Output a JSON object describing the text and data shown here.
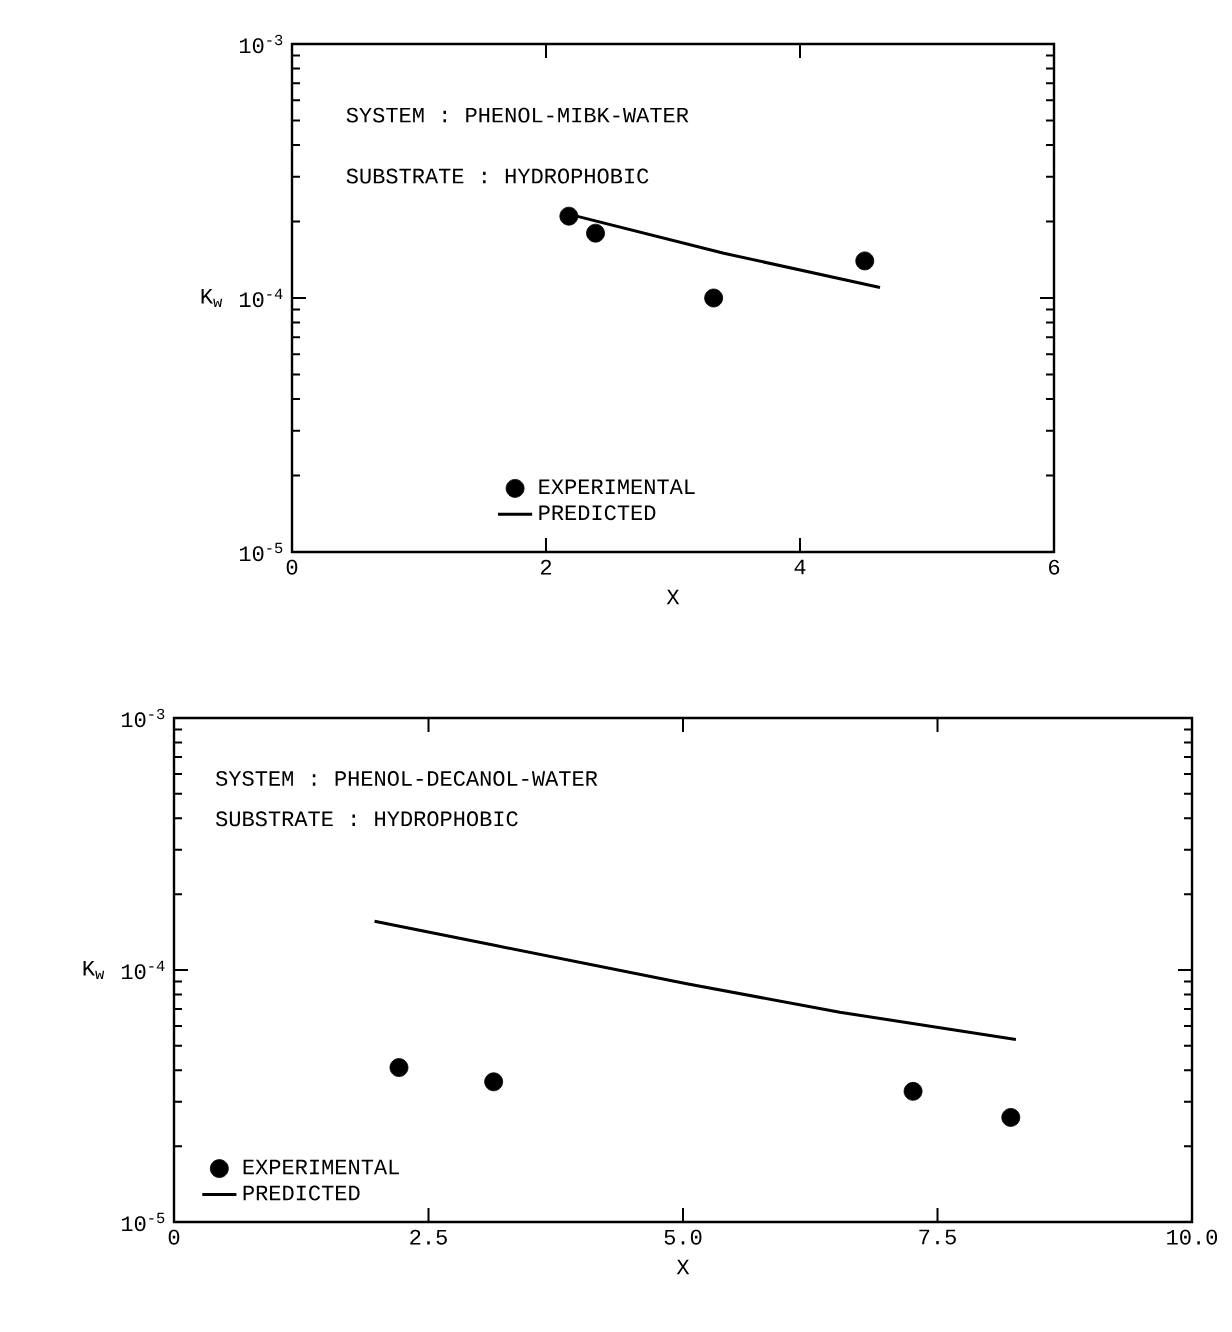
{
  "chart_data": [
    {
      "type": "scatter",
      "xlabel": "X",
      "ylabel": "K$_{w}$",
      "log": "y",
      "legend": "bottom",
      "annotations": [
        "SYSTEM : PHENOL-MIBK-WATER",
        "SUBSTRATE : HYDROPHOBIC"
      ],
      "xlim": [
        0,
        6
      ],
      "xticks": [
        0,
        2,
        4,
        6
      ],
      "ylim": [
        1e-05,
        0.001
      ],
      "yticks": [
        {
          "value": 1e-05,
          "label": "10$^{-5}$"
        },
        {
          "value": 0.0001,
          "label": "10$^{-4}$"
        },
        {
          "value": 0.001,
          "label": "10$^{-3}$"
        }
      ],
      "series": [
        {
          "name": "EXPERIMENTAL",
          "marker": "circle",
          "color": "#000000",
          "x": [
            2.18,
            2.39,
            3.32,
            4.51
          ],
          "values": [
            0.00021,
            0.00018,
            0.0001,
            0.00014
          ]
        },
        {
          "name": "PREDICTED",
          "type": "line",
          "line_style": "solid",
          "color": "#000000",
          "x": [
            2.24,
            3.4,
            4.63
          ],
          "values": [
            0.00021,
            0.00015,
            0.00011
          ]
        }
      ]
    },
    {
      "type": "scatter",
      "xlabel": "X",
      "ylabel": "K$_{w}$",
      "log": "y",
      "legend": "bottom left",
      "annotations": [
        "SYSTEM : PHENOL-DECANOL-WATER",
        "SUBSTRATE : HYDROPHOBIC"
      ],
      "xlim": [
        0,
        10
      ],
      "xticks": [
        0,
        2.5,
        {
          "value": 5,
          "label": "5.0"
        },
        7.5,
        {
          "value": 10,
          "label": "10.0"
        }
      ],
      "ylim": [
        1e-05,
        0.001
      ],
      "yticks": [
        {
          "value": 1e-05,
          "label": "10$^{-5}$"
        },
        {
          "value": 0.0001,
          "label": "10$^{-4}$"
        },
        {
          "value": 0.001,
          "label": "10$^{-3}$"
        }
      ],
      "series": [
        {
          "name": "EXPERIMENTAL",
          "marker": "circle",
          "color": "#000000",
          "x": [
            2.21,
            3.14,
            7.26,
            8.22
          ],
          "values": [
            4.1e-05,
            3.6e-05,
            3.3e-05,
            2.6e-05
          ]
        },
        {
          "name": "PREDICTED",
          "type": "line",
          "line_style": "solid",
          "color": "#000000",
          "x": [
            1.97,
            3.16,
            5.05,
            6.54,
            8.27
          ],
          "values": [
            0.000156,
            0.000125,
            8.8e-05,
            6.8e-05,
            5.3e-05
          ]
        }
      ]
    }
  ]
}
